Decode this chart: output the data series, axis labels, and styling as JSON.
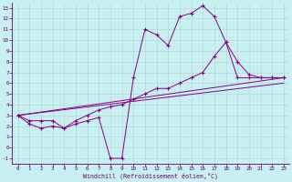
{
  "xlabel": "Windchill (Refroidissement éolien,°C)",
  "bg_color": "#c8f0f0",
  "line_color": "#880088",
  "xlim": [
    -0.5,
    23.5
  ],
  "ylim": [
    -1.5,
    13.5
  ],
  "xticks": [
    0,
    1,
    2,
    3,
    4,
    5,
    6,
    7,
    8,
    9,
    10,
    11,
    12,
    13,
    14,
    15,
    16,
    17,
    18,
    19,
    20,
    21,
    22,
    23
  ],
  "yticks": [
    -1,
    0,
    1,
    2,
    3,
    4,
    5,
    6,
    7,
    8,
    9,
    10,
    11,
    12,
    13
  ],
  "line1_x": [
    0,
    1,
    2,
    3,
    4,
    5,
    6,
    7,
    8,
    9,
    10,
    11,
    12,
    13,
    14,
    15,
    16,
    17,
    18,
    19,
    20,
    21,
    22,
    23
  ],
  "line1_y": [
    3.0,
    2.2,
    1.8,
    2.0,
    1.8,
    2.2,
    2.5,
    2.8,
    -1.0,
    -1.0,
    6.5,
    11.0,
    10.5,
    9.5,
    12.2,
    12.5,
    13.2,
    12.2,
    9.8,
    8.0,
    6.8,
    6.5,
    6.5,
    6.5
  ],
  "line2_x": [
    0,
    1,
    2,
    3,
    4,
    5,
    6,
    7,
    8,
    9,
    10,
    11,
    12,
    13,
    14,
    15,
    16,
    17,
    18,
    19,
    20,
    21,
    22,
    23
  ],
  "line2_y": [
    3.0,
    2.5,
    2.5,
    2.5,
    1.8,
    2.5,
    3.0,
    3.5,
    3.8,
    4.0,
    4.5,
    5.0,
    5.5,
    5.5,
    6.0,
    6.5,
    7.0,
    8.5,
    9.8,
    6.5,
    6.5,
    6.5,
    6.5,
    6.5
  ],
  "line3_x": [
    0,
    23
  ],
  "line3_y": [
    3.0,
    6.5
  ],
  "line4_x": [
    0,
    23
  ],
  "line4_y": [
    3.0,
    6.0
  ]
}
